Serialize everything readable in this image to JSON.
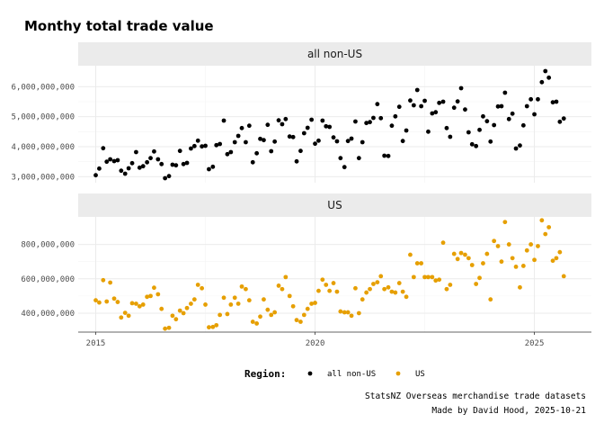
{
  "title": "Monthy total trade value",
  "caption": {
    "line1": "StatsNZ Overseas merchandise trade datasets",
    "line2": "Made by David Hood, 2025-10-21"
  },
  "legend": {
    "title": "Region:",
    "placement": "bottom",
    "items": [
      {
        "label": "all non-US",
        "color": "#000000"
      },
      {
        "label": "US",
        "color": "#E69F00"
      }
    ]
  },
  "chart_data": [
    {
      "type": "scatter",
      "facet": "all non-US",
      "color": "#000000",
      "xlabel": "",
      "ylabel": "",
      "xlim": [
        2014.6,
        2026.3
      ],
      "xticks": [
        2015,
        2020,
        2025
      ],
      "xtick_labels": [
        "2015",
        "2020",
        "2025"
      ],
      "ylim": [
        2800000000,
        6700000000
      ],
      "yticks": [
        3000000000,
        4000000000,
        5000000000,
        6000000000
      ],
      "ytick_labels": [
        "3,000,000,000",
        "4,000,000,000",
        "5,000,000,000",
        "6,000,000,000"
      ],
      "grid": true,
      "x": [
        2015.0,
        2015.08,
        2015.17,
        2015.25,
        2015.33,
        2015.42,
        2015.5,
        2015.58,
        2015.67,
        2015.75,
        2015.83,
        2015.92,
        2016.0,
        2016.08,
        2016.17,
        2016.25,
        2016.33,
        2016.42,
        2016.5,
        2016.58,
        2016.67,
        2016.75,
        2016.83,
        2016.92,
        2017.0,
        2017.08,
        2017.17,
        2017.25,
        2017.33,
        2017.42,
        2017.5,
        2017.58,
        2017.67,
        2017.75,
        2017.83,
        2017.92,
        2018.0,
        2018.08,
        2018.17,
        2018.25,
        2018.33,
        2018.42,
        2018.5,
        2018.58,
        2018.67,
        2018.75,
        2018.83,
        2018.92,
        2019.0,
        2019.08,
        2019.17,
        2019.25,
        2019.33,
        2019.42,
        2019.5,
        2019.58,
        2019.67,
        2019.75,
        2019.83,
        2019.92,
        2020.0,
        2020.08,
        2020.17,
        2020.25,
        2020.33,
        2020.42,
        2020.5,
        2020.58,
        2020.67,
        2020.75,
        2020.83,
        2020.92,
        2021.0,
        2021.08,
        2021.17,
        2021.25,
        2021.33,
        2021.42,
        2021.5,
        2021.58,
        2021.67,
        2021.75,
        2021.83,
        2021.92,
        2022.0,
        2022.08,
        2022.17,
        2022.25,
        2022.33,
        2022.42,
        2022.5,
        2022.58,
        2022.67,
        2022.75,
        2022.83,
        2022.92,
        2023.0,
        2023.08,
        2023.17,
        2023.25,
        2023.33,
        2023.42,
        2023.5,
        2023.58,
        2023.67,
        2023.75,
        2023.83,
        2023.92,
        2024.0,
        2024.08,
        2024.17,
        2024.25,
        2024.33,
        2024.42,
        2024.5,
        2024.58,
        2024.67,
        2024.75,
        2024.83,
        2024.92,
        2025.0,
        2025.08,
        2025.17,
        2025.25,
        2025.33,
        2025.42,
        2025.5,
        2025.58,
        2025.67
      ],
      "y": [
        3050000000,
        3270000000,
        3950000000,
        3500000000,
        3580000000,
        3520000000,
        3550000000,
        3200000000,
        3100000000,
        3280000000,
        3450000000,
        3820000000,
        3300000000,
        3350000000,
        3480000000,
        3620000000,
        3840000000,
        3580000000,
        3420000000,
        2950000000,
        3020000000,
        3400000000,
        3380000000,
        3860000000,
        3420000000,
        3460000000,
        3940000000,
        4020000000,
        4200000000,
        4010000000,
        4030000000,
        3250000000,
        3330000000,
        4050000000,
        4090000000,
        4870000000,
        3750000000,
        3820000000,
        4150000000,
        4360000000,
        4620000000,
        4150000000,
        4700000000,
        3480000000,
        3780000000,
        4260000000,
        4220000000,
        4730000000,
        3850000000,
        4170000000,
        4880000000,
        4750000000,
        4920000000,
        4340000000,
        4320000000,
        3510000000,
        3860000000,
        4450000000,
        4630000000,
        4900000000,
        4100000000,
        4200000000,
        4870000000,
        4680000000,
        4660000000,
        4310000000,
        4180000000,
        3620000000,
        3320000000,
        4190000000,
        4270000000,
        4840000000,
        3620000000,
        4150000000,
        4790000000,
        4820000000,
        4960000000,
        5420000000,
        4950000000,
        3700000000,
        3690000000,
        4700000000,
        5010000000,
        5330000000,
        4190000000,
        4540000000,
        5540000000,
        5380000000,
        5890000000,
        5350000000,
        5530000000,
        4500000000,
        5110000000,
        5150000000,
        5460000000,
        5500000000,
        4620000000,
        4330000000,
        5300000000,
        5510000000,
        5950000000,
        5240000000,
        4480000000,
        4080000000,
        4020000000,
        4560000000,
        5010000000,
        4850000000,
        4170000000,
        4720000000,
        5340000000,
        5350000000,
        5800000000,
        4920000000,
        5100000000,
        3940000000,
        4040000000,
        4710000000,
        5350000000,
        5580000000,
        5080000000,
        5580000000,
        6150000000,
        6520000000,
        6300000000,
        5480000000,
        5500000000,
        4830000000,
        4940000000
      ]
    },
    {
      "type": "scatter",
      "facet": "US",
      "color": "#E69F00",
      "xlabel": "",
      "ylabel": "",
      "xlim": [
        2014.6,
        2026.3
      ],
      "xticks": [
        2015,
        2020,
        2025
      ],
      "xtick_labels": [
        "2015",
        "2020",
        "2025"
      ],
      "ylim": [
        290000000,
        960000000
      ],
      "yticks": [
        400000000,
        600000000,
        800000000
      ],
      "ytick_labels": [
        "400,000,000",
        "600,000,000",
        "800,000,000"
      ],
      "grid": true,
      "x": [
        2015.0,
        2015.08,
        2015.17,
        2015.25,
        2015.33,
        2015.42,
        2015.5,
        2015.58,
        2015.67,
        2015.75,
        2015.83,
        2015.92,
        2016.0,
        2016.08,
        2016.17,
        2016.25,
        2016.33,
        2016.42,
        2016.5,
        2016.58,
        2016.67,
        2016.75,
        2016.83,
        2016.92,
        2017.0,
        2017.08,
        2017.17,
        2017.25,
        2017.33,
        2017.42,
        2017.5,
        2017.58,
        2017.67,
        2017.75,
        2017.83,
        2017.92,
        2018.0,
        2018.08,
        2018.17,
        2018.25,
        2018.33,
        2018.42,
        2018.5,
        2018.58,
        2018.67,
        2018.75,
        2018.83,
        2018.92,
        2019.0,
        2019.08,
        2019.17,
        2019.25,
        2019.33,
        2019.42,
        2019.5,
        2019.58,
        2019.67,
        2019.75,
        2019.83,
        2019.92,
        2020.0,
        2020.08,
        2020.17,
        2020.25,
        2020.33,
        2020.42,
        2020.5,
        2020.58,
        2020.67,
        2020.75,
        2020.83,
        2020.92,
        2021.0,
        2021.08,
        2021.17,
        2021.25,
        2021.33,
        2021.42,
        2021.5,
        2021.58,
        2021.67,
        2021.75,
        2021.83,
        2021.92,
        2022.0,
        2022.08,
        2022.17,
        2022.25,
        2022.33,
        2022.42,
        2022.5,
        2022.58,
        2022.67,
        2022.75,
        2022.83,
        2022.92,
        2023.0,
        2023.08,
        2023.17,
        2023.25,
        2023.33,
        2023.42,
        2023.5,
        2023.58,
        2023.67,
        2023.75,
        2023.83,
        2023.92,
        2024.0,
        2024.08,
        2024.17,
        2024.25,
        2024.33,
        2024.42,
        2024.5,
        2024.58,
        2024.67,
        2024.75,
        2024.83,
        2024.92,
        2025.0,
        2025.08,
        2025.17,
        2025.25,
        2025.33,
        2025.42,
        2025.5,
        2025.58,
        2025.67
      ],
      "y": [
        475000000,
        462000000,
        592000000,
        468000000,
        578000000,
        485000000,
        465000000,
        375000000,
        402000000,
        385000000,
        458000000,
        455000000,
        440000000,
        450000000,
        495000000,
        500000000,
        548000000,
        510000000,
        425000000,
        310000000,
        315000000,
        385000000,
        365000000,
        415000000,
        400000000,
        430000000,
        455000000,
        480000000,
        565000000,
        545000000,
        450000000,
        318000000,
        320000000,
        330000000,
        390000000,
        490000000,
        395000000,
        450000000,
        490000000,
        455000000,
        555000000,
        540000000,
        475000000,
        350000000,
        340000000,
        380000000,
        480000000,
        420000000,
        390000000,
        405000000,
        560000000,
        540000000,
        610000000,
        500000000,
        440000000,
        360000000,
        350000000,
        390000000,
        425000000,
        455000000,
        460000000,
        530000000,
        595000000,
        565000000,
        530000000,
        575000000,
        525000000,
        410000000,
        405000000,
        405000000,
        385000000,
        545000000,
        400000000,
        480000000,
        520000000,
        540000000,
        570000000,
        580000000,
        615000000,
        540000000,
        550000000,
        525000000,
        520000000,
        575000000,
        525000000,
        495000000,
        740000000,
        610000000,
        690000000,
        690000000,
        610000000,
        610000000,
        610000000,
        590000000,
        595000000,
        810000000,
        540000000,
        565000000,
        745000000,
        715000000,
        750000000,
        740000000,
        720000000,
        680000000,
        570000000,
        605000000,
        690000000,
        745000000,
        480000000,
        820000000,
        790000000,
        700000000,
        930000000,
        800000000,
        720000000,
        670000000,
        550000000,
        675000000,
        765000000,
        800000000,
        710000000,
        790000000,
        940000000,
        860000000,
        900000000,
        705000000,
        720000000,
        755000000,
        615000000
      ]
    }
  ]
}
